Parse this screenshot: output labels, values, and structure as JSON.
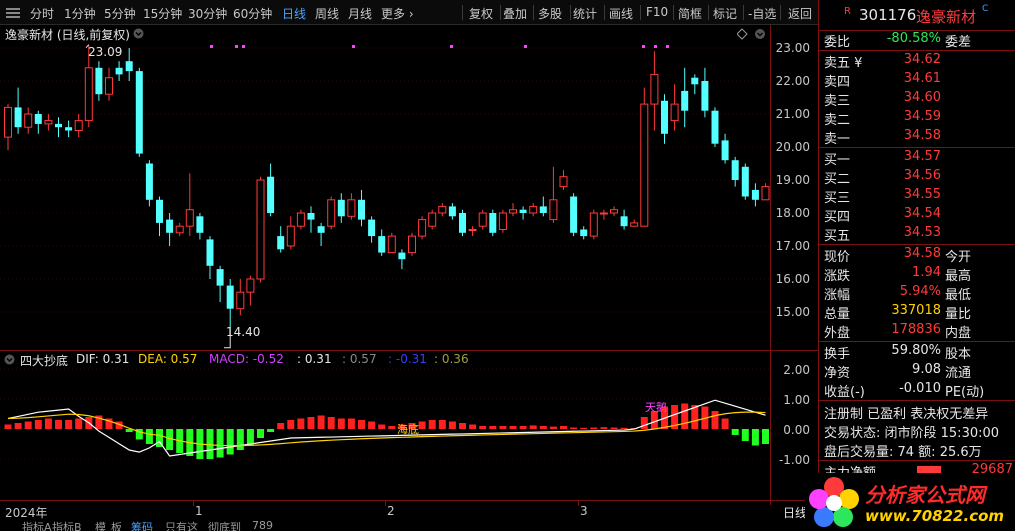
{
  "toolbar": {
    "left": [
      "分时",
      "1分钟",
      "5分钟",
      "15分钟",
      "30分钟",
      "60分钟",
      "日线",
      "周线",
      "月线",
      "更多 ›"
    ],
    "active": "日线",
    "right": [
      "复权",
      "叠加",
      "多股",
      "统计",
      "画线",
      "F10",
      "简框",
      "标记",
      "-自选",
      "返回"
    ]
  },
  "chart": {
    "title": "逸豪新材 (日线,前复权)",
    "high_label": "23.09",
    "low_label": "14.40",
    "price_axis": [
      "23.00",
      "22.00",
      "21.00",
      "20.00",
      "19.00",
      "18.00",
      "17.00",
      "16.00",
      "15.00"
    ],
    "colors": {
      "up": "#ff3a3a",
      "down": "#54ffff",
      "ma": "#ffffff"
    }
  },
  "indicator": {
    "name": "四大抄底",
    "dif_label": "DIF: 0.31",
    "dea_label": "DEA: 0.57",
    "macd_label": "MACD: -0.52",
    "extra1": ": 0.31",
    "extra2": ": 0.57",
    "extra3": ": -0.31",
    "extra4": ": 0.36",
    "axis": [
      "2.00",
      "1.00",
      "0.00",
      "-1.00"
    ],
    "sig1": "海底",
    "sig2": "天鹅"
  },
  "xaxis": {
    "labels": [
      "2024年",
      "1",
      "2",
      "3"
    ],
    "right_label": "日线"
  },
  "bottom_tabs": [
    "指标A",
    "指标B",
    "模",
    "板",
    "筹码",
    "只有这",
    "彻底到",
    "789"
  ],
  "panel": {
    "badge": "R",
    "code": "301176",
    "name": "逸豪新材",
    "badge2": "C",
    "webi": {
      "label": "委比",
      "value": "-80.58%",
      "label2": "委差"
    },
    "sell": [
      {
        "label": "卖五 ¥",
        "price": "34.62"
      },
      {
        "label": "卖四",
        "price": "34.61"
      },
      {
        "label": "卖三",
        "price": "34.60"
      },
      {
        "label": "卖二",
        "price": "34.59"
      },
      {
        "label": "卖一",
        "price": "34.58"
      }
    ],
    "buy": [
      {
        "label": "买一",
        "price": "34.57"
      },
      {
        "label": "买二",
        "price": "34.56"
      },
      {
        "label": "买三",
        "price": "34.55"
      },
      {
        "label": "买四",
        "price": "34.54"
      },
      {
        "label": "买五",
        "price": "34.53"
      }
    ],
    "stats": [
      {
        "l": "现价",
        "v": "34.58",
        "c": "red",
        "r": "今开"
      },
      {
        "l": "涨跌",
        "v": "1.94",
        "c": "red",
        "r": "最高"
      },
      {
        "l": "涨幅",
        "v": "5.94%",
        "c": "red",
        "r": "最低"
      },
      {
        "l": "总量",
        "v": "337018",
        "c": "yellow",
        "r": "量比"
      },
      {
        "l": "外盘",
        "v": "178836",
        "c": "red",
        "r": "内盘"
      }
    ],
    "stats2": [
      {
        "l": "换手",
        "v": "59.80%",
        "r": "股本"
      },
      {
        "l": "净资",
        "v": "9.08",
        "r": "流通"
      },
      {
        "l": "收益(-)",
        "v": "-0.010",
        "r": "PE(动)"
      }
    ],
    "reg": "注册制 已盈利 表决权无差异",
    "trade_state": "交易状态: 闭市阶段 15:30:00",
    "after": "盘后交易量: 74  额: 25.6万",
    "net_label": "主力净额",
    "net_value": "29687"
  },
  "logo": {
    "text": "分析家公式网",
    "url": "www.70822.com"
  }
}
